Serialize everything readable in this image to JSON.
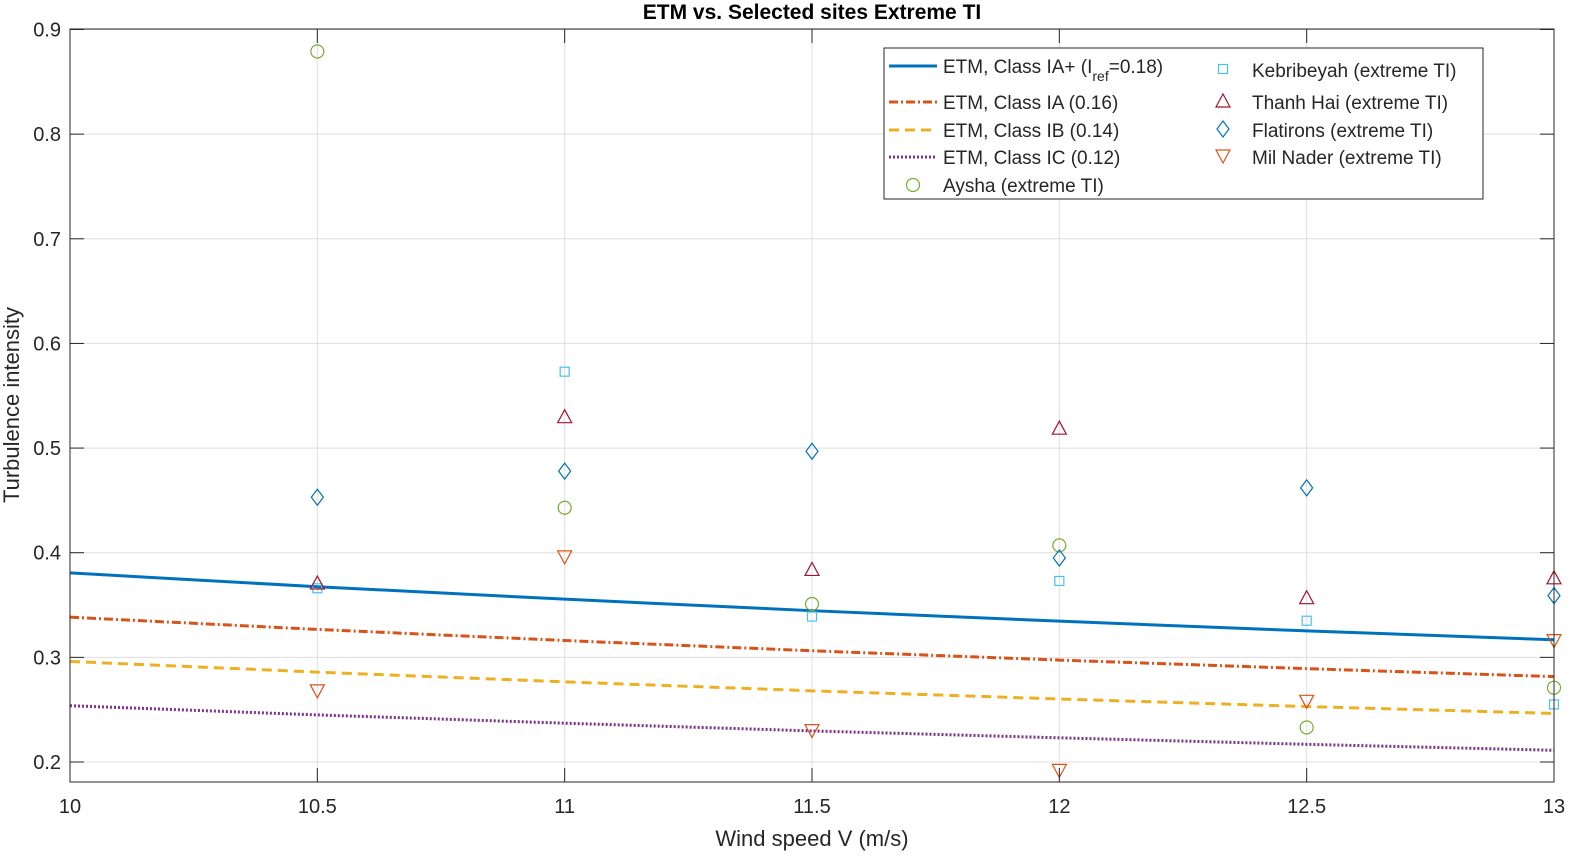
{
  "chart_data": {
    "type": "line",
    "title": "ETM vs. Selected sites Extreme TI",
    "xlabel": "Wind speed V (m/s)",
    "ylabel": "Turbulence intensity",
    "xlim": [
      10,
      13
    ],
    "ylim": [
      0.18,
      0.9
    ],
    "xticks": [
      "10",
      "10.5",
      "11",
      "11.5",
      "12",
      "12.5",
      "13"
    ],
    "xtick_values": [
      10,
      10.5,
      11,
      11.5,
      12,
      12.5,
      13
    ],
    "yticks": [
      "0.2",
      "0.3",
      "0.4",
      "0.5",
      "0.6",
      "0.7",
      "0.8",
      "0.9"
    ],
    "ytick_values": [
      0.2,
      0.3,
      0.4,
      0.5,
      0.6,
      0.7,
      0.8,
      0.9
    ],
    "grid": true,
    "legend_placement": "top-right",
    "x": [
      10,
      10.5,
      11,
      11.5,
      12,
      12.5,
      13
    ],
    "lines": [
      {
        "name": "ETM, Class IA+ (I",
        "sub": "ref",
        "suffix": "=0.18)",
        "color": "#0072BD",
        "dash": "solid",
        "values": [
          0.3807,
          0.3675,
          0.3556,
          0.3446,
          0.3346,
          0.3253,
          0.3168
        ]
      },
      {
        "name": "ETM, Class IA (0.16)",
        "color": "#D95319",
        "dash": "dashdot",
        "values": [
          0.3384,
          0.3267,
          0.3161,
          0.3063,
          0.2974,
          0.2892,
          0.2816
        ]
      },
      {
        "name": "ETM, Class IB (0.14)",
        "color": "#EDB120",
        "dash": "dashed",
        "values": [
          0.2961,
          0.2859,
          0.2766,
          0.268,
          0.2602,
          0.253,
          0.2464
        ]
      },
      {
        "name": "ETM, Class IC (0.12)",
        "color": "#7E2F8E",
        "dash": "dotted",
        "values": [
          0.2538,
          0.245,
          0.2371,
          0.2297,
          0.2231,
          0.2169,
          0.2112
        ]
      }
    ],
    "scatter_x": [
      10.5,
      11,
      11.5,
      12,
      12.5,
      13
    ],
    "scatter": [
      {
        "name": "Aysha (extreme TI)",
        "marker": "circle",
        "color": "#77AC30",
        "values": [
          0.879,
          0.443,
          0.351,
          0.407,
          0.233,
          0.271
        ]
      },
      {
        "name": "Kebribeyah (extreme TI)",
        "marker": "square",
        "color": "#4DBEEE",
        "values": [
          0.366,
          0.573,
          0.339,
          0.373,
          0.335,
          0.255
        ]
      },
      {
        "name": "Thanh Hai (extreme TI)",
        "marker": "triangle-up",
        "color": "#A2142F",
        "values": [
          0.371,
          0.53,
          0.384,
          0.519,
          0.357,
          0.376
        ]
      },
      {
        "name": "Flatirons (extreme TI)",
        "marker": "diamond",
        "color": "#0072BD",
        "values": [
          0.453,
          0.478,
          0.497,
          0.395,
          0.462,
          0.359
        ]
      },
      {
        "name": "Mil Nader (extreme TI)",
        "marker": "triangle-down",
        "color": "#D95319",
        "values": [
          0.268,
          0.396,
          0.23,
          0.192,
          0.258,
          0.316
        ]
      }
    ]
  }
}
